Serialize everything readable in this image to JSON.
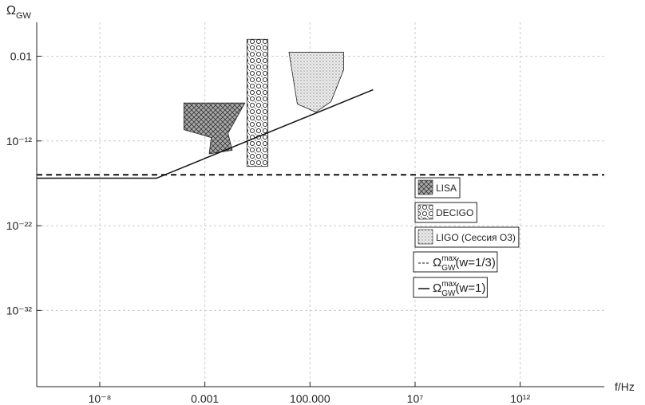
{
  "chart_data": {
    "type": "line",
    "y_label": {
      "base": "Ω",
      "sub": "GW"
    },
    "x_label": "f/Hz",
    "log_x": true,
    "log_y": true,
    "grid": true,
    "xlim": [
      1e-11,
      1e+16
    ],
    "ylim": [
      1e-41,
      100
    ],
    "xticks": [
      {
        "value": 1e-08,
        "label": "10⁻⁸"
      },
      0.001,
      {
        "value": 100,
        "label": "100.000"
      },
      {
        "value": 10000000.0,
        "label": "10⁷"
      },
      {
        "value": 1000000000000.0,
        "label": "10¹²"
      }
    ],
    "yticks": [
      0.01,
      {
        "value": 1e-12,
        "label": "10⁻¹²"
      },
      {
        "value": 1e-22,
        "label": "10⁻²²"
      },
      {
        "value": 1e-32,
        "label": "10⁻³²"
      }
    ],
    "regions": [
      {
        "name": "LISA",
        "pattern": "crosshatch",
        "x": [
          0.0001,
          0.08,
          0.0126,
          0.02,
          0.0016,
          0.002,
          0.0001
        ],
        "values": [
          3e-08,
          3e-08,
          8e-12,
          8e-14,
          3e-14,
          2.5e-12,
          2.2e-11
        ]
      },
      {
        "name": "DECIGO",
        "pattern": "honeycomb",
        "x": [
          0.1,
          1,
          1,
          0.1
        ],
        "values": [
          1,
          1,
          1e-15,
          1e-15
        ]
      },
      {
        "name": "LIGO (Сессия O3)",
        "pattern": "dots",
        "x": [
          10,
          25,
          190,
          1000,
          4000,
          4000
        ],
        "values": [
          0.03,
          2.3e-08,
          2.5e-09,
          4.4e-08,
          0.00025,
          0.03
        ]
      }
    ],
    "series": [
      {
        "name": {
          "base": "Ω",
          "sup": "max",
          "sub": "GW",
          "tail": "(w=1/3)"
        },
        "color": "#111111",
        "dash": true,
        "x": [
          1e-11,
          1e+16
        ],
        "values": [
          1e-16,
          1e-16
        ]
      },
      {
        "name": {
          "base": "Ω",
          "sup": "max",
          "sub": "GW",
          "tail": "(w=1)"
        },
        "color": "#111111",
        "dash": false,
        "x": [
          1e-11,
          5e-06,
          100000
        ],
        "values": [
          4e-17,
          4e-17,
          1.1e-06
        ]
      }
    ]
  }
}
